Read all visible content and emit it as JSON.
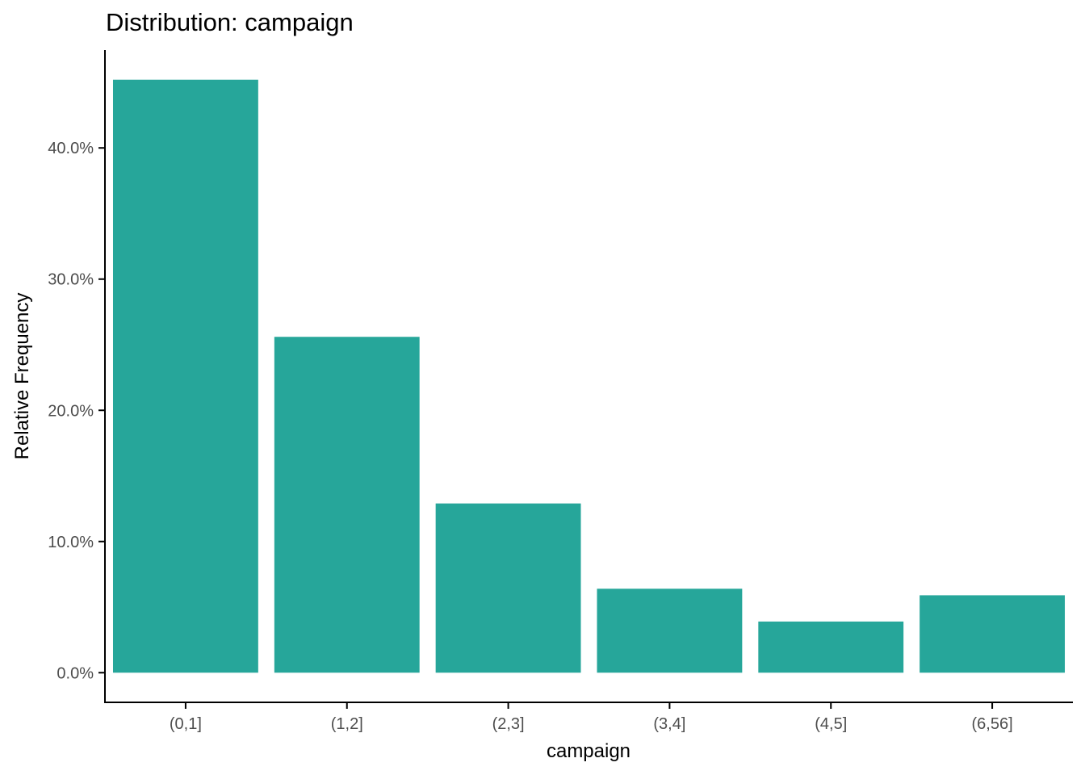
{
  "chart_data": {
    "type": "bar",
    "title": "Distribution: campaign",
    "xlabel": "campaign",
    "ylabel": "Relative Frequency",
    "categories": [
      "(0,1]",
      "(1,2]",
      "(2,3]",
      "(3,4]",
      "(4,5]",
      "(6,56]"
    ],
    "values": [
      45.2,
      25.6,
      12.9,
      6.4,
      3.9,
      5.9
    ],
    "value_unit": "percent",
    "yticks": [
      0,
      10,
      20,
      30,
      40
    ],
    "ytick_labels": [
      "0.0%",
      "10.0%",
      "20.0%",
      "30.0%",
      "40.0%"
    ],
    "ylim": [
      -2.26,
      47.46
    ],
    "grid": false,
    "legend": "none",
    "bar_color": "#26A69A",
    "axis_color": "#000000",
    "tick_label_color": "#4d4d4d"
  }
}
